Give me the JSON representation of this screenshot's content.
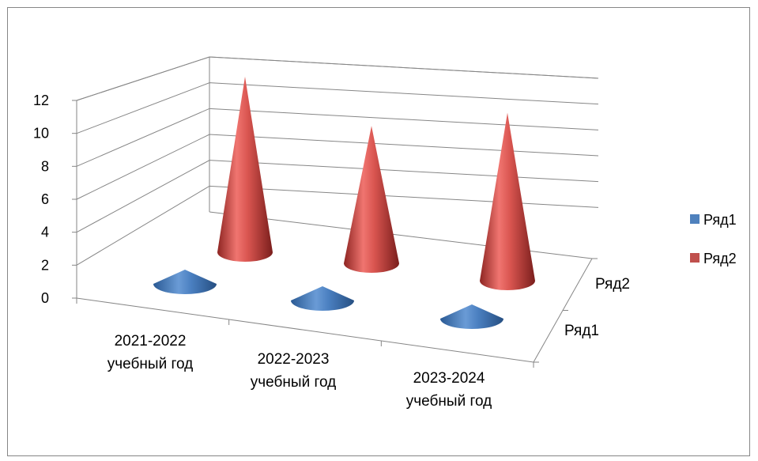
{
  "chart_data": {
    "type": "bar",
    "shape": "cone-3d",
    "categories": [
      "2021-2022 учебный год",
      "2022-2023 учебный год",
      "2023-2024 учебный год"
    ],
    "series": [
      {
        "name": "Ряд1",
        "values": [
          0.5,
          0.5,
          0.5
        ],
        "color": "#4F81BD"
      },
      {
        "name": "Ряд2",
        "values": [
          11.5,
          9,
          11
        ],
        "color": "#C0504D"
      }
    ],
    "ylim": [
      0,
      12
    ],
    "yticks": [
      0,
      2,
      4,
      6,
      8,
      10,
      12
    ],
    "depth_labels": [
      "Ряд2",
      "Ряд1"
    ],
    "grid": true,
    "legend_position": "right",
    "title": "",
    "xlabel": "",
    "ylabel": ""
  },
  "category_lines": [
    [
      "2021-2022",
      "учебный год"
    ],
    [
      "2022-2023",
      "учебный год"
    ],
    [
      "2023-2024",
      "учебный год"
    ]
  ]
}
